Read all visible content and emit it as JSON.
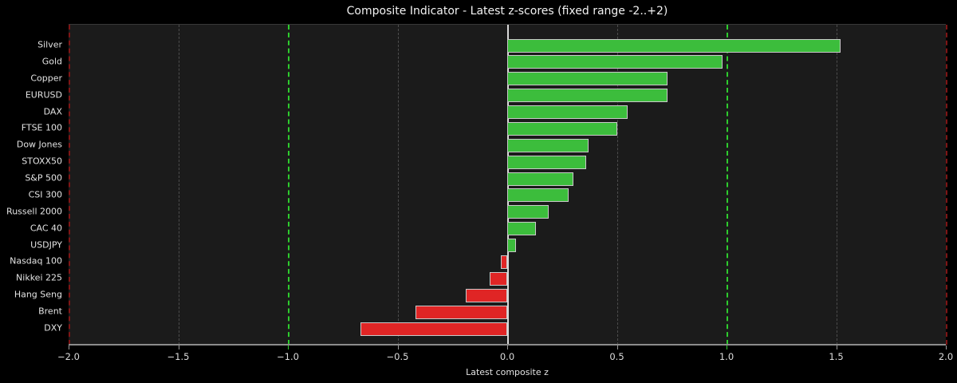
{
  "chart_data": {
    "type": "bar",
    "orientation": "horizontal",
    "title": "Composite Indicator - Latest z-scores (fixed range -2..+2)",
    "xlabel": "Latest composite z",
    "categories": [
      "Silver",
      "Gold",
      "Copper",
      "EURUSD",
      "DAX",
      "FTSE 100",
      "Dow Jones",
      "STOXX50",
      "S&P 500",
      "CSI 300",
      "Russell 2000",
      "CAC 40",
      "USDJPY",
      "Nasdaq 100",
      "Nikkei 225",
      "Hang Seng",
      "Brent",
      "DXY"
    ],
    "values": [
      1.52,
      0.98,
      0.73,
      0.73,
      0.55,
      0.5,
      0.37,
      0.36,
      0.3,
      0.28,
      0.19,
      0.13,
      0.04,
      -0.03,
      -0.08,
      -0.19,
      -0.42,
      -0.67
    ],
    "xlim": [
      -2.0,
      2.0
    ],
    "xticks": [
      -2.0,
      -1.5,
      -1.0,
      -0.5,
      0.0,
      0.5,
      1.0,
      1.5,
      2.0
    ],
    "xtick_labels": [
      "−2.0",
      "−1.5",
      "−1.0",
      "−0.5",
      "0.0",
      "0.5",
      "1.0",
      "1.5",
      "2.0"
    ],
    "grid": true,
    "legend": null,
    "thresholds": {
      "green": [
        -1.0,
        1.0
      ],
      "red": [
        -2.0,
        2.0
      ]
    },
    "zero_line": 0.0,
    "colors": {
      "positive_bar": "#3cbd3c",
      "negative_bar": "#e02525",
      "bar_edge": "#c9c9c9",
      "green_threshold": "#2ecc2e",
      "red_threshold": "#7e1515",
      "grid": "#4d4d4d",
      "zero_line": "#d9d9d9",
      "axes_bg": "#1b1b1b",
      "fig_bg": "#000000",
      "text": "#e8e8e8"
    }
  }
}
